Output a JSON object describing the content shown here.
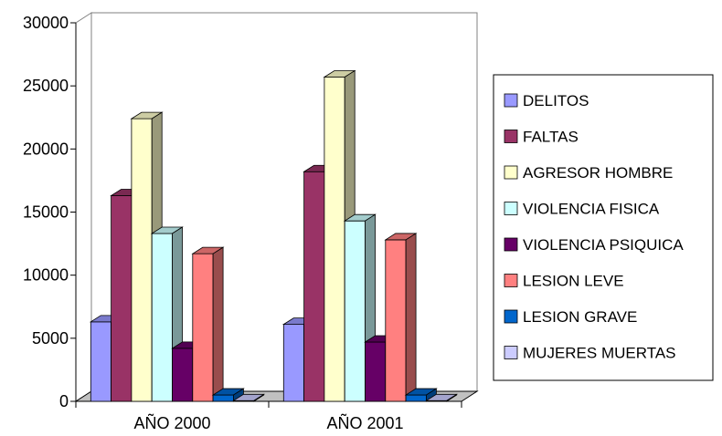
{
  "chart_data": {
    "type": "bar",
    "style": "3d-clustered-column",
    "title": "",
    "xlabel": "",
    "ylabel": "",
    "ylim": [
      0,
      30000
    ],
    "yticks": [
      0,
      5000,
      10000,
      15000,
      20000,
      25000,
      30000
    ],
    "grid": false,
    "legend_position": "right",
    "categories": [
      "AÑO 2000",
      "AÑO 2001"
    ],
    "series": [
      {
        "name": "DELITOS",
        "color": "#9999FF",
        "values": [
          6300,
          6100
        ]
      },
      {
        "name": "FALTAS",
        "color": "#993366",
        "values": [
          16300,
          18200
        ]
      },
      {
        "name": "AGRESOR HOMBRE",
        "color": "#FFFFCC",
        "values": [
          22400,
          25700
        ]
      },
      {
        "name": "VIOLENCIA FISICA",
        "color": "#CCFFFF",
        "values": [
          13300,
          14300
        ]
      },
      {
        "name": "VIOLENCIA PSIQUICA",
        "color": "#660066",
        "values": [
          4200,
          4700
        ]
      },
      {
        "name": "LESION LEVE",
        "color": "#FF8080",
        "values": [
          11700,
          12800
        ]
      },
      {
        "name": "LESION GRAVE",
        "color": "#0066CC",
        "values": [
          500,
          500
        ]
      },
      {
        "name": "MUJERES MUERTAS",
        "color": "#CCCCFF",
        "values": [
          50,
          50
        ]
      }
    ]
  }
}
